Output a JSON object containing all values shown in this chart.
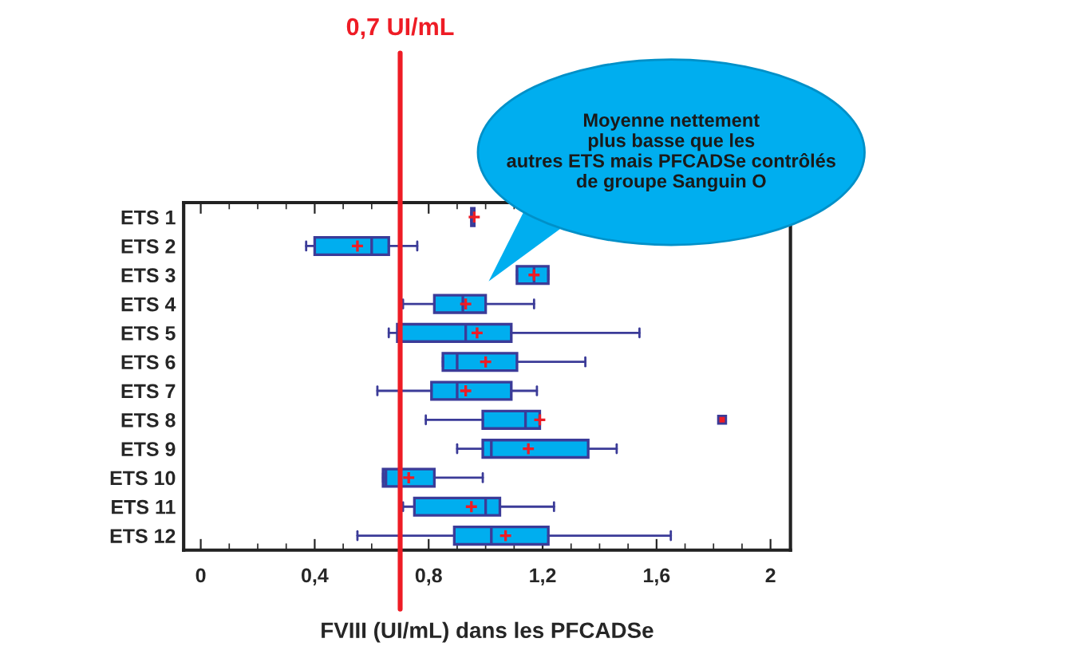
{
  "chart_data": {
    "type": "box",
    "orientation": "horizontal",
    "categories": [
      "ETS 1",
      "ETS 2",
      "ETS 3",
      "ETS 4",
      "ETS 5",
      "ETS 6",
      "ETS 7",
      "ETS 8",
      "ETS 9",
      "ETS 10",
      "ETS 11",
      "ETS 12"
    ],
    "boxes": [
      {
        "low": 0.95,
        "q1": 0.95,
        "median": 0.96,
        "q3": 0.96,
        "high": 0.96,
        "mean": 0.96
      },
      {
        "low": 0.37,
        "q1": 0.4,
        "median": 0.6,
        "q3": 0.66,
        "high": 0.76,
        "mean": 0.55
      },
      {
        "low": 1.11,
        "q1": 1.11,
        "median": 1.17,
        "q3": 1.22,
        "high": 1.22,
        "mean": 1.17
      },
      {
        "low": 0.71,
        "q1": 0.82,
        "median": 0.92,
        "q3": 1.0,
        "high": 1.17,
        "mean": 0.93
      },
      {
        "low": 0.66,
        "q1": 0.69,
        "median": 0.93,
        "q3": 1.09,
        "high": 1.54,
        "mean": 0.97
      },
      {
        "low": 0.85,
        "q1": 0.85,
        "median": 0.9,
        "q3": 1.11,
        "high": 1.35,
        "mean": 1.0
      },
      {
        "low": 0.62,
        "q1": 0.81,
        "median": 0.9,
        "q3": 1.09,
        "high": 1.18,
        "mean": 0.93
      },
      {
        "low": 0.79,
        "q1": 0.99,
        "median": 1.14,
        "q3": 1.19,
        "high": 1.19,
        "mean": 1.19,
        "outliers": [
          1.83
        ]
      },
      {
        "low": 0.9,
        "q1": 0.99,
        "median": 1.02,
        "q3": 1.36,
        "high": 1.46,
        "mean": 1.15
      },
      {
        "low": 0.64,
        "q1": 0.64,
        "median": 0.65,
        "q3": 0.82,
        "high": 0.99,
        "mean": 0.73
      },
      {
        "low": 0.71,
        "q1": 0.75,
        "median": 1.0,
        "q3": 1.05,
        "high": 1.24,
        "mean": 0.95
      },
      {
        "low": 0.55,
        "q1": 0.89,
        "median": 1.02,
        "q3": 1.22,
        "high": 1.65,
        "mean": 1.07
      }
    ],
    "color": "#00aeef",
    "xlim": [
      -0.06,
      2.07
    ],
    "xticks": [
      0,
      {
        "value": 0.4,
        "label": "0,4"
      },
      {
        "value": 0.8,
        "label": "0,8"
      },
      {
        "value": 1.2,
        "label": "1,2"
      },
      {
        "value": 1.6,
        "label": "1,6"
      },
      2
    ],
    "xlabel": "FVIII (UI/mL) dans les PFCADSe",
    "ref_lines": [
      {
        "axis": "x",
        "value": 0.7,
        "label": "0,7 UI/mL",
        "color": "#ee1c25"
      }
    ],
    "annotations": [
      "Moyenne nettement\nplus basse que les\nautres ETS mais PFCADSe contrôlés\nde groupe Sanguin O"
    ],
    "grid": false,
    "legend": false
  }
}
